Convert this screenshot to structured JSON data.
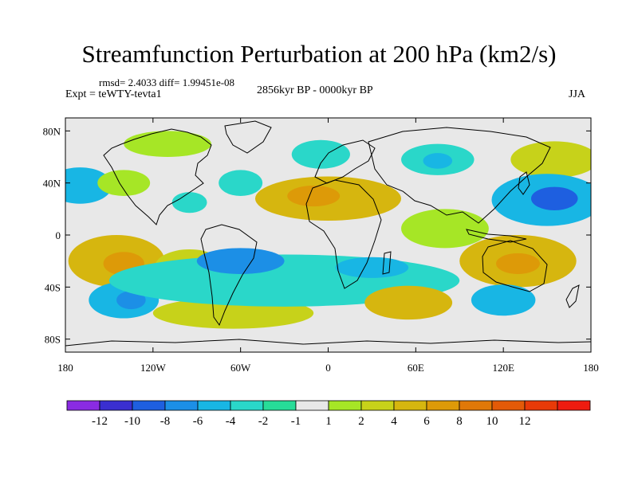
{
  "title": "Streamfunction Perturbation at 200 hPa (km2/s)",
  "stats": "rmsd= 2.4033 diff= 1.99451e-08",
  "expt": "Expt = teWTY-tevta1",
  "period": "2856kyr BP - 0000kyr BP",
  "season": "JJA",
  "lat_labels": [
    "80N",
    "40N",
    "0",
    "40S",
    "80S"
  ],
  "lon_labels": [
    "180",
    "120W",
    "60W",
    "0",
    "60E",
    "120E",
    "180"
  ],
  "lat_values": [
    80,
    40,
    0,
    -40,
    -80
  ],
  "lon_values": [
    -180,
    -120,
    -60,
    0,
    60,
    120,
    180
  ],
  "colorbar": {
    "colors": [
      "#8a2be2",
      "#3a2fd0",
      "#1e5fe0",
      "#1c8fe6",
      "#18b6e4",
      "#2ad7c9",
      "#27dc98",
      "#e8e8e8",
      "#a6e626",
      "#c7d21a",
      "#d6b60f",
      "#dd9a08",
      "#e07808",
      "#e35a08",
      "#e83a08",
      "#ee1c10"
    ],
    "labels": [
      "-12",
      "-10",
      "-8",
      "-6",
      "-4",
      "-2",
      "-1",
      "1",
      "2",
      "4",
      "6",
      "8",
      "10",
      "12"
    ]
  },
  "fields": [
    {
      "name": "pacific-sw-orange",
      "lon": -145,
      "lat": -20,
      "rx": 33,
      "ry": 20,
      "level": 6
    },
    {
      "name": "pacific-sw-core",
      "lon": -140,
      "lat": -22,
      "rx": 14,
      "ry": 9,
      "level": 8
    },
    {
      "name": "south-pacific-yellow-band",
      "lon": -95,
      "lat": -25,
      "rx": 24,
      "ry": 14,
      "level": 4
    },
    {
      "name": "patagonia-orange",
      "lon": -82,
      "lat": -50,
      "rx": 14,
      "ry": 10,
      "level": 6
    },
    {
      "name": "south-pacific-blue",
      "lon": -140,
      "lat": -50,
      "rx": 24,
      "ry": 14,
      "level": -4
    },
    {
      "name": "south-pacific-blue-core",
      "lon": -135,
      "lat": -50,
      "rx": 10,
      "ry": 7,
      "level": -6
    },
    {
      "name": "south-atlantic-yellow",
      "lon": -65,
      "lat": -60,
      "rx": 55,
      "ry": 12,
      "level": 4
    },
    {
      "name": "north-pacific-blue",
      "lon": -170,
      "lat": 38,
      "rx": 22,
      "ry": 14,
      "level": -4
    },
    {
      "name": "north-pacific-yellow",
      "lon": -140,
      "lat": 40,
      "rx": 18,
      "ry": 10,
      "level": 2
    },
    {
      "name": "north-america-blue",
      "lon": -60,
      "lat": 40,
      "rx": 15,
      "ry": 10,
      "level": -2
    },
    {
      "name": "arctic-canada-green",
      "lon": -110,
      "lat": 70,
      "rx": 30,
      "ry": 10,
      "level": 2
    },
    {
      "name": "atlantic-teal",
      "lon": -95,
      "lat": 25,
      "rx": 12,
      "ry": 8,
      "level": -2
    },
    {
      "name": "north-africa-orange",
      "lon": 0,
      "lat": 28,
      "rx": 50,
      "ry": 17,
      "level": 6
    },
    {
      "name": "north-africa-core",
      "lon": -10,
      "lat": 30,
      "rx": 18,
      "ry": 8,
      "level": 8
    },
    {
      "name": "greenland-teal",
      "lon": -5,
      "lat": 62,
      "rx": 20,
      "ry": 11,
      "level": -2
    },
    {
      "name": "siberia-teal",
      "lon": 75,
      "lat": 58,
      "rx": 25,
      "ry": 12,
      "level": -2
    },
    {
      "name": "siberia-blue-core",
      "lon": 75,
      "lat": 57,
      "rx": 10,
      "ry": 6,
      "level": -4
    },
    {
      "name": "east-asia-yellow",
      "lon": 155,
      "lat": 58,
      "rx": 30,
      "ry": 14,
      "level": 4
    },
    {
      "name": "north-pacific-east-blue",
      "lon": 150,
      "lat": 27,
      "rx": 38,
      "ry": 20,
      "level": -4
    },
    {
      "name": "north-pacific-east-core",
      "lon": 155,
      "lat": 28,
      "rx": 16,
      "ry": 9,
      "level": -8
    },
    {
      "name": "southern-ocean-blue",
      "lon": -30,
      "lat": -35,
      "rx": 120,
      "ry": 20,
      "level": -2
    },
    {
      "name": "south-atlantic-blue-core",
      "lon": -60,
      "lat": -20,
      "rx": 30,
      "ry": 10,
      "level": -6
    },
    {
      "name": "indian-ocean-blue-core",
      "lon": 30,
      "lat": -25,
      "rx": 25,
      "ry": 8,
      "level": -4
    },
    {
      "name": "south-indian-orange",
      "lon": 55,
      "lat": -52,
      "rx": 30,
      "ry": 13,
      "level": 6
    },
    {
      "name": "australia-orange",
      "lon": 130,
      "lat": -20,
      "rx": 40,
      "ry": 20,
      "level": 6
    },
    {
      "name": "australia-core",
      "lon": 130,
      "lat": -22,
      "rx": 15,
      "ry": 8,
      "level": 8
    },
    {
      "name": "south-east-indian-blue",
      "lon": 120,
      "lat": -50,
      "rx": 22,
      "ry": 12,
      "level": -4
    },
    {
      "name": "indian-ocean-green",
      "lon": 80,
      "lat": 5,
      "rx": 30,
      "ry": 15,
      "level": 2
    }
  ]
}
